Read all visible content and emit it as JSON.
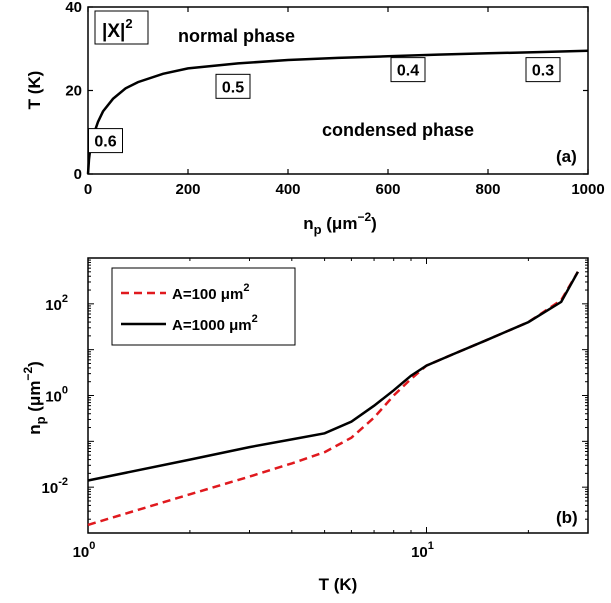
{
  "chart_data": [
    {
      "type": "line",
      "panel_label": "(a)",
      "xlabel": "n_p (μm^-2)",
      "xlabel_main": "n",
      "xlabel_sub": "p",
      "xlabel_unit_open": " (μm",
      "xlabel_unit_exp": "−2",
      "xlabel_unit_close": ")",
      "ylabel": "T (K)",
      "xlim": [
        0,
        1000
      ],
      "ylim": [
        0,
        40
      ],
      "xticks": [
        0,
        200,
        400,
        600,
        800,
        1000
      ],
      "xtick_labels": [
        "0",
        "200",
        "400",
        "600",
        "800",
        "1000"
      ],
      "yticks": [
        0,
        20,
        40
      ],
      "ytick_labels": [
        "0",
        "20",
        "40"
      ],
      "grid": false,
      "series": [
        {
          "color": "#000000",
          "style": "solid",
          "x": [
            0,
            2,
            5,
            10,
            20,
            30,
            50,
            75,
            100,
            150,
            200,
            300,
            400,
            500,
            600,
            700,
            800,
            900,
            1000
          ],
          "y": [
            0,
            3.5,
            6.5,
            9,
            12.5,
            15,
            18,
            20.5,
            22,
            24,
            25.3,
            26.5,
            27.3,
            27.8,
            28.2,
            28.6,
            28.9,
            29.2,
            29.5
          ]
        }
      ],
      "annotations": {
        "hopfield_label_main": "|X|",
        "hopfield_label_exp": "2",
        "normal_phase": "normal phase",
        "condensed_phase": "condensed phase",
        "box_values": [
          "0.6",
          "0.5",
          "0.4",
          "0.3"
        ],
        "box_positions": [
          [
            35,
            8
          ],
          [
            290,
            21
          ],
          [
            640,
            25
          ],
          [
            910,
            25
          ]
        ]
      }
    },
    {
      "type": "line",
      "panel_label": "(b)",
      "xlabel": "T (K)",
      "ylabel": "n_p (μm^-2)",
      "ylabel_main": "n",
      "ylabel_sub": "p",
      "ylabel_unit_open": " (μm",
      "ylabel_unit_exp": "−2",
      "ylabel_unit_close": ")",
      "xscale": "log",
      "yscale": "log",
      "xlim": [
        1,
        30
      ],
      "ylim": [
        0.001,
        1000
      ],
      "xticks": [
        1,
        10
      ],
      "xtick_base": "10",
      "xtick_exps": [
        "0",
        "1"
      ],
      "yticks": [
        0.01,
        1,
        100
      ],
      "ytick_base": "10",
      "ytick_exps": [
        "-2",
        "0",
        "2"
      ],
      "grid": false,
      "legend_position": "top-left",
      "series": [
        {
          "name": "A=100 μm²",
          "name_main": "A=100 μm",
          "name_exp": "2",
          "color": "#e0191e",
          "style": "dashed",
          "x": [
            1,
            2,
            3,
            4,
            5,
            6,
            7,
            8,
            9,
            10,
            12,
            15,
            20,
            25,
            28
          ],
          "y": [
            0.0015,
            0.007,
            0.017,
            0.033,
            0.058,
            0.12,
            0.33,
            1.0,
            2.3,
            4.5,
            8.0,
            16,
            40,
            120,
            500
          ]
        },
        {
          "name": "A=1000 μm²",
          "name_main": "A=1000 μm",
          "name_exp": "2",
          "color": "#000000",
          "style": "solid",
          "x": [
            1,
            2,
            3,
            4,
            5,
            6,
            7,
            8,
            9,
            10,
            12,
            15,
            20,
            25,
            28
          ],
          "y": [
            0.014,
            0.04,
            0.075,
            0.11,
            0.15,
            0.27,
            0.6,
            1.3,
            2.7,
            4.5,
            8.0,
            16,
            40,
            110,
            500
          ]
        }
      ]
    }
  ]
}
